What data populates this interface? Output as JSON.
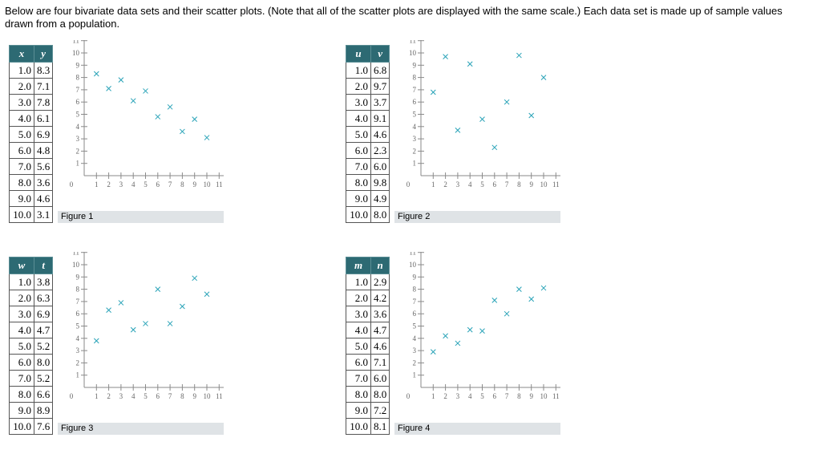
{
  "intro": "Below are four bivariate data sets and their scatter plots. (Note that all of the scatter plots are displayed with the same scale.) Each data set is made up of sample values drawn from a population.",
  "marker_color": "#2aa3b8",
  "header_color": "#2d6a73",
  "chart_data": [
    {
      "type": "scatter",
      "xlabel": "x",
      "ylabel": "y",
      "caption": "Figure 1",
      "headers": [
        "x",
        "y"
      ],
      "rows": [
        [
          "1.0",
          "8.3"
        ],
        [
          "2.0",
          "7.1"
        ],
        [
          "3.0",
          "7.8"
        ],
        [
          "4.0",
          "6.1"
        ],
        [
          "5.0",
          "6.9"
        ],
        [
          "6.0",
          "4.8"
        ],
        [
          "7.0",
          "5.6"
        ],
        [
          "8.0",
          "3.6"
        ],
        [
          "9.0",
          "4.6"
        ],
        [
          "10.0",
          "3.1"
        ]
      ],
      "x": [
        1,
        2,
        3,
        4,
        5,
        6,
        7,
        8,
        9,
        10
      ],
      "y": [
        8.3,
        7.1,
        7.8,
        6.1,
        6.9,
        4.8,
        5.6,
        3.6,
        4.6,
        3.1
      ],
      "xlim": [
        0,
        11
      ],
      "ylim": [
        0,
        11
      ]
    },
    {
      "type": "scatter",
      "xlabel": "u",
      "ylabel": "v",
      "caption": "Figure 2",
      "headers": [
        "u",
        "v"
      ],
      "rows": [
        [
          "1.0",
          "6.8"
        ],
        [
          "2.0",
          "9.7"
        ],
        [
          "3.0",
          "3.7"
        ],
        [
          "4.0",
          "9.1"
        ],
        [
          "5.0",
          "4.6"
        ],
        [
          "6.0",
          "2.3"
        ],
        [
          "7.0",
          "6.0"
        ],
        [
          "8.0",
          "9.8"
        ],
        [
          "9.0",
          "4.9"
        ],
        [
          "10.0",
          "8.0"
        ]
      ],
      "x": [
        1,
        2,
        3,
        4,
        5,
        6,
        7,
        8,
        9,
        10
      ],
      "y": [
        6.8,
        9.7,
        3.7,
        9.1,
        4.6,
        2.3,
        6.0,
        9.8,
        4.9,
        8.0
      ],
      "xlim": [
        0,
        11
      ],
      "ylim": [
        0,
        11
      ]
    },
    {
      "type": "scatter",
      "xlabel": "w",
      "ylabel": "t",
      "caption": "Figure 3",
      "headers": [
        "w",
        "t"
      ],
      "rows": [
        [
          "1.0",
          "3.8"
        ],
        [
          "2.0",
          "6.3"
        ],
        [
          "3.0",
          "6.9"
        ],
        [
          "4.0",
          "4.7"
        ],
        [
          "5.0",
          "5.2"
        ],
        [
          "6.0",
          "8.0"
        ],
        [
          "7.0",
          "5.2"
        ],
        [
          "8.0",
          "6.6"
        ],
        [
          "9.0",
          "8.9"
        ],
        [
          "10.0",
          "7.6"
        ]
      ],
      "x": [
        1,
        2,
        3,
        4,
        5,
        6,
        7,
        8,
        9,
        10
      ],
      "y": [
        3.8,
        6.3,
        6.9,
        4.7,
        5.2,
        8.0,
        5.2,
        6.6,
        8.9,
        7.6
      ],
      "xlim": [
        0,
        11
      ],
      "ylim": [
        0,
        11
      ]
    },
    {
      "type": "scatter",
      "xlabel": "m",
      "ylabel": "n",
      "caption": "Figure 4",
      "headers": [
        "m",
        "n"
      ],
      "rows": [
        [
          "1.0",
          "2.9"
        ],
        [
          "2.0",
          "4.2"
        ],
        [
          "3.0",
          "3.6"
        ],
        [
          "4.0",
          "4.7"
        ],
        [
          "5.0",
          "4.6"
        ],
        [
          "6.0",
          "7.1"
        ],
        [
          "7.0",
          "6.0"
        ],
        [
          "8.0",
          "8.0"
        ],
        [
          "9.0",
          "7.2"
        ],
        [
          "10.0",
          "8.1"
        ]
      ],
      "x": [
        1,
        2,
        3,
        4,
        5,
        6,
        7,
        8,
        9,
        10
      ],
      "y": [
        2.9,
        4.2,
        3.6,
        4.7,
        4.6,
        7.1,
        6.0,
        8.0,
        7.2,
        8.1
      ],
      "xlim": [
        0,
        11
      ],
      "ylim": [
        0,
        11
      ]
    }
  ]
}
